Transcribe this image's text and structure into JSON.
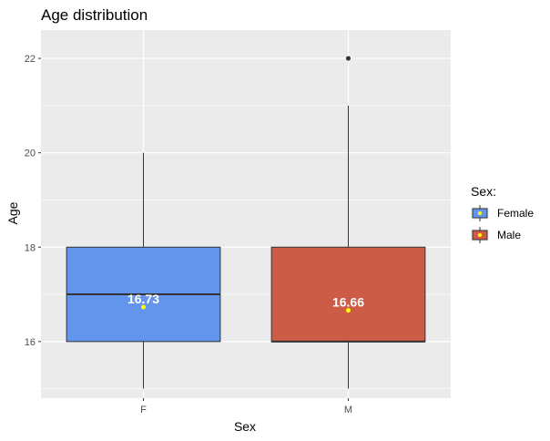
{
  "chart_data": {
    "type": "box",
    "title": "Age distribution",
    "xlabel": "Sex",
    "ylabel": "Age",
    "ylim": [
      14.8,
      22.6
    ],
    "y_ticks": [
      16,
      18,
      20,
      22
    ],
    "grid": true,
    "categories": [
      "F",
      "M"
    ],
    "boxes": [
      {
        "category": "F",
        "series": "Female",
        "color": "#6495ED",
        "whisker_low": 15,
        "q1": 16,
        "median": 17,
        "q3": 18,
        "whisker_high": 20,
        "mean": 16.73,
        "mean_label": "16.73",
        "outliers": []
      },
      {
        "category": "M",
        "series": "Male",
        "color": "#CD5C46",
        "whisker_low": 15,
        "q1": 16,
        "median": 16,
        "q3": 18,
        "whisker_high": 21,
        "mean": 16.66,
        "mean_label": "16.66",
        "outliers": [
          22
        ]
      }
    ],
    "mean_marker_color": "#FFFF00",
    "legend": {
      "title": "Sex:",
      "position": "right",
      "entries": [
        {
          "label": "Female",
          "color": "#6495ED"
        },
        {
          "label": "Male",
          "color": "#CD5C46"
        }
      ]
    }
  }
}
